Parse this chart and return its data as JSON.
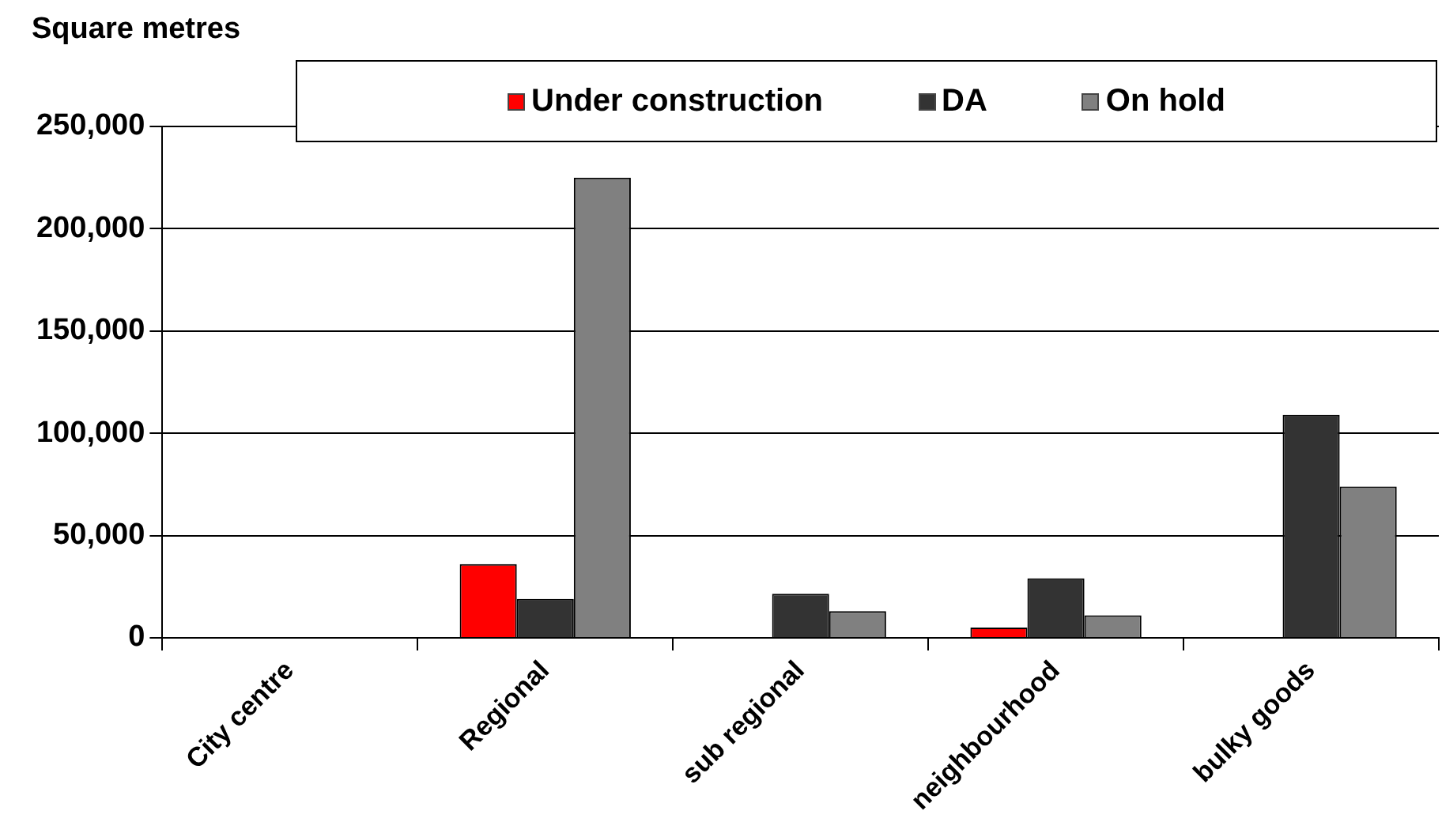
{
  "chart_data": {
    "type": "bar",
    "ylabel": "Square metres",
    "categories": [
      "City centre",
      "Regional",
      "sub regional",
      "neighbourhood",
      "bulky goods"
    ],
    "series": [
      {
        "name": "Under construction",
        "color": "#ff0000",
        "values": [
          0,
          36000,
          0,
          5000,
          0
        ]
      },
      {
        "name": "DA",
        "color": "#333333",
        "values": [
          0,
          19000,
          21500,
          29000,
          109000
        ]
      },
      {
        "name": "On hold",
        "color": "#808080",
        "values": [
          0,
          225000,
          13000,
          11000,
          74000
        ]
      }
    ],
    "ylim": [
      0,
      250000
    ],
    "yticks": [
      0,
      {
        "value": 50000,
        "label": "50,000"
      },
      {
        "value": 100000,
        "label": "100,000"
      },
      {
        "value": 150000,
        "label": "150,000"
      },
      {
        "value": 200000,
        "label": "200,000"
      },
      {
        "value": 250000,
        "label": "250,000"
      }
    ],
    "grid": "y",
    "legend": "top"
  }
}
